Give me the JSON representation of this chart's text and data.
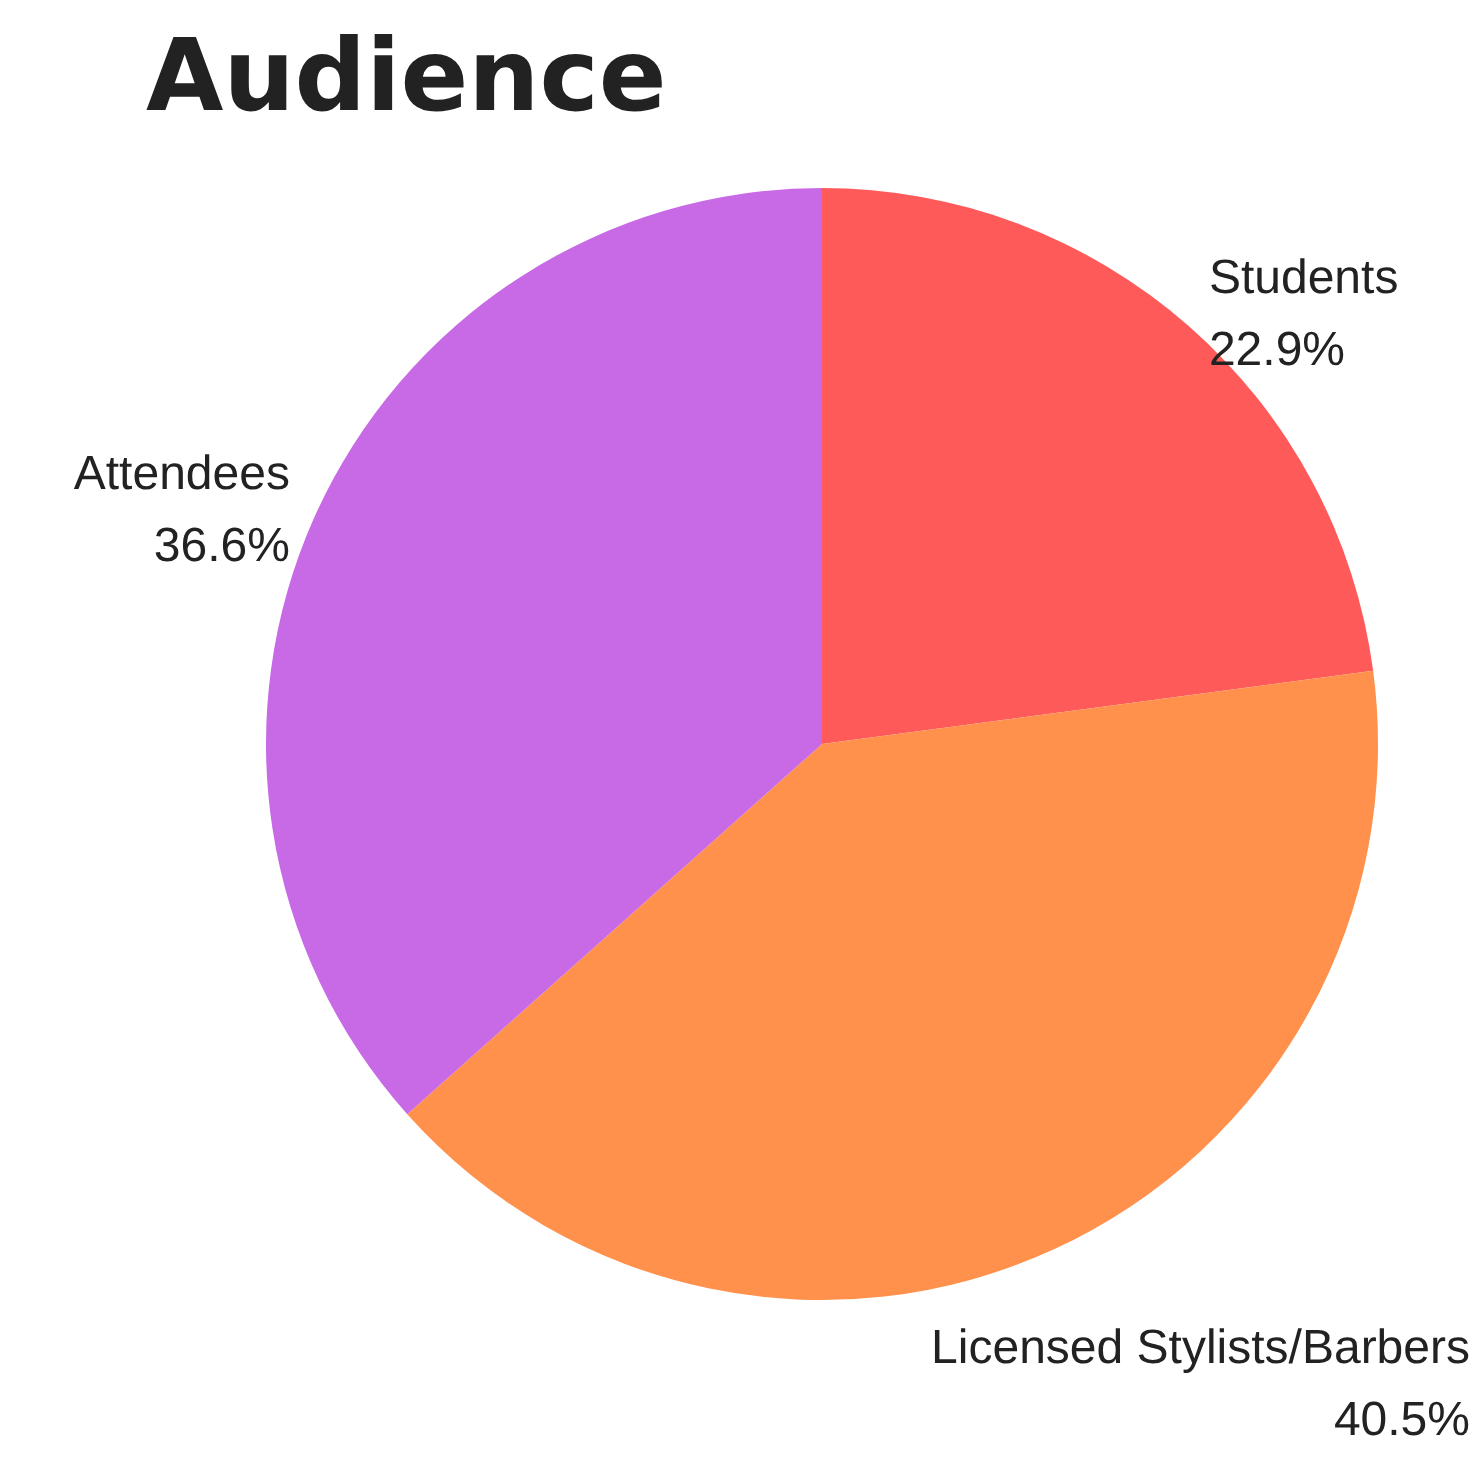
{
  "chart_data": {
    "type": "pie",
    "title": "Audience",
    "categories": [
      "Students",
      "Licensed Stylists/Barbers",
      "Attendees"
    ],
    "values": [
      22.9,
      40.5,
      36.6
    ],
    "value_labels": [
      "22.9%",
      "40.5%",
      "36.6%"
    ],
    "colors": [
      "#ff5a5a",
      "#ff914d",
      "#c86ae5"
    ],
    "legend": false
  }
}
